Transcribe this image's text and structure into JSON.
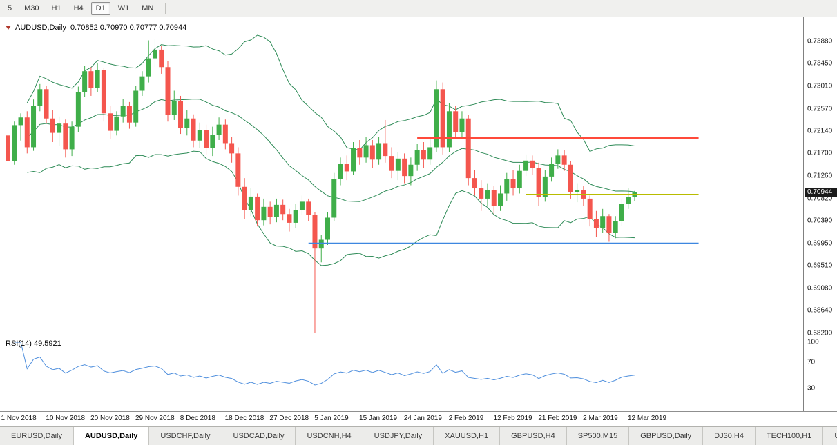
{
  "toolbar": {
    "timeframes": [
      {
        "label": "5",
        "active": false
      },
      {
        "label": "M30",
        "active": false
      },
      {
        "label": "H1",
        "active": false
      },
      {
        "label": "H4",
        "active": false
      },
      {
        "label": "D1",
        "active": true
      },
      {
        "label": "W1",
        "active": false
      },
      {
        "label": "MN",
        "active": false
      }
    ]
  },
  "chart": {
    "symbol_title": "AUDUSD,Daily",
    "ohlc_line": "0.70852 0.70970 0.70777 0.70944"
  },
  "rsi": {
    "label": "RSI(14) 49.5921",
    "axis_labels": [
      "100",
      "70",
      "30"
    ],
    "levels": [
      70,
      30
    ]
  },
  "chart_data": {
    "type": "candlestick",
    "symbol": "AUDUSD",
    "timeframe": "Daily",
    "last_ohlc": {
      "open": "0.70852",
      "high": "0.70970",
      "low": "0.70777",
      "close": "0.70944"
    },
    "current_price": "0.70944",
    "colors": {
      "up": "#3fae49",
      "down": "#f4564e",
      "bollinger": "#2e8b57",
      "rsi": "#4f8fdd",
      "background": "#ffffff",
      "axis_text": "#111111"
    },
    "y_ticks": [
      "0.73880",
      "0.73450",
      "0.73010",
      "0.72570",
      "0.72140",
      "0.71700",
      "0.71260",
      "0.70820",
      "0.70390",
      "0.69950",
      "0.69510",
      "0.69080",
      "0.68640",
      "0.68200"
    ],
    "x_labels": [
      "1 Nov 2018",
      "10 Nov 2018",
      "20 Nov 2018",
      "29 Nov 2018",
      "8 Dec 2018",
      "18 Dec 2018",
      "27 Dec 2018",
      "5 Jan 2019",
      "15 Jan 2019",
      "24 Jan 2019",
      "2 Feb 2019",
      "12 Feb 2019",
      "21 Feb 2019",
      "2 Mar 2019",
      "12 Mar 2019"
    ],
    "x_label_indices": [
      0,
      7,
      14,
      21,
      28,
      35,
      42,
      49,
      56,
      63,
      70,
      77,
      84,
      91,
      98
    ],
    "indicators": {
      "bollinger": {
        "period": 20,
        "deviation": 2
      },
      "rsi": {
        "period": 14,
        "value": "49.5921"
      }
    },
    "hlines": [
      {
        "name": "resistance-hline-red",
        "price": 0.72,
        "color": "#ff4a3a",
        "from_index": 64,
        "to_index": 108
      },
      {
        "name": "pivot-hline-yellow",
        "price": 0.709,
        "color": "#b8bc00",
        "from_index": 81,
        "to_index": 108
      },
      {
        "name": "support-hline-blue",
        "price": 0.6995,
        "color": "#3d87e0",
        "from_index": 47,
        "to_index": 108
      }
    ],
    "ohlc": [
      [
        0.7205,
        0.7218,
        0.7145,
        0.7155
      ],
      [
        0.7155,
        0.7232,
        0.7148,
        0.7225
      ],
      [
        0.7225,
        0.7248,
        0.7195,
        0.724
      ],
      [
        0.724,
        0.7252,
        0.717,
        0.7182
      ],
      [
        0.7182,
        0.7275,
        0.7175,
        0.7262
      ],
      [
        0.7262,
        0.7305,
        0.7252,
        0.7295
      ],
      [
        0.7295,
        0.7302,
        0.7228,
        0.7238
      ],
      [
        0.7238,
        0.7255,
        0.7192,
        0.721
      ],
      [
        0.721,
        0.7242,
        0.7185,
        0.7228
      ],
      [
        0.7228,
        0.7236,
        0.7162,
        0.7178
      ],
      [
        0.7178,
        0.7232,
        0.7165,
        0.7222
      ],
      [
        0.7222,
        0.73,
        0.7212,
        0.729
      ],
      [
        0.729,
        0.734,
        0.728,
        0.733
      ],
      [
        0.733,
        0.7338,
        0.7282,
        0.7298
      ],
      [
        0.7298,
        0.7345,
        0.729,
        0.7332
      ],
      [
        0.7332,
        0.7336,
        0.7232,
        0.7248
      ],
      [
        0.7248,
        0.7262,
        0.7198,
        0.7214
      ],
      [
        0.7214,
        0.7252,
        0.7205,
        0.7242
      ],
      [
        0.7242,
        0.7276,
        0.723,
        0.7262
      ],
      [
        0.7262,
        0.727,
        0.7218,
        0.723
      ],
      [
        0.723,
        0.7302,
        0.7222,
        0.7292
      ],
      [
        0.7292,
        0.733,
        0.7282,
        0.732
      ],
      [
        0.732,
        0.739,
        0.7308,
        0.7355
      ],
      [
        0.7355,
        0.7392,
        0.7338,
        0.7372
      ],
      [
        0.7372,
        0.738,
        0.7325,
        0.7338
      ],
      [
        0.7338,
        0.735,
        0.7232,
        0.7245
      ],
      [
        0.7245,
        0.7292,
        0.7235,
        0.7272
      ],
      [
        0.7272,
        0.7282,
        0.7208,
        0.722
      ],
      [
        0.722,
        0.7255,
        0.7205,
        0.7238
      ],
      [
        0.7238,
        0.7246,
        0.7182,
        0.7195
      ],
      [
        0.7195,
        0.723,
        0.718,
        0.7216
      ],
      [
        0.7216,
        0.7226,
        0.7168,
        0.718
      ],
      [
        0.718,
        0.7222,
        0.7165,
        0.7206
      ],
      [
        0.7206,
        0.724,
        0.7196,
        0.7226
      ],
      [
        0.7226,
        0.7236,
        0.7178,
        0.719
      ],
      [
        0.719,
        0.7202,
        0.7152,
        0.717
      ],
      [
        0.717,
        0.7182,
        0.7088,
        0.7105
      ],
      [
        0.7105,
        0.7122,
        0.7042,
        0.706
      ],
      [
        0.706,
        0.7102,
        0.7048,
        0.7086
      ],
      [
        0.7086,
        0.7092,
        0.7028,
        0.704
      ],
      [
        0.704,
        0.7082,
        0.703,
        0.7066
      ],
      [
        0.7066,
        0.7076,
        0.7032,
        0.7046
      ],
      [
        0.7046,
        0.7082,
        0.7036,
        0.707
      ],
      [
        0.707,
        0.708,
        0.704,
        0.7052
      ],
      [
        0.7052,
        0.7062,
        0.7018,
        0.7035
      ],
      [
        0.7035,
        0.7072,
        0.7025,
        0.706
      ],
      [
        0.706,
        0.7088,
        0.705,
        0.7076
      ],
      [
        0.7076,
        0.7082,
        0.7038,
        0.705
      ],
      [
        0.705,
        0.7056,
        0.682,
        0.6985
      ],
      [
        0.6985,
        0.7012,
        0.6958,
        0.7002
      ],
      [
        0.7002,
        0.7056,
        0.6992,
        0.7045
      ],
      [
        0.7045,
        0.7132,
        0.7038,
        0.712
      ],
      [
        0.712,
        0.7162,
        0.7108,
        0.715
      ],
      [
        0.715,
        0.7166,
        0.7118,
        0.7135
      ],
      [
        0.7135,
        0.7192,
        0.7128,
        0.718
      ],
      [
        0.718,
        0.7196,
        0.7148,
        0.7162
      ],
      [
        0.7162,
        0.7202,
        0.7152,
        0.7186
      ],
      [
        0.7186,
        0.7196,
        0.7142,
        0.7158
      ],
      [
        0.7158,
        0.7202,
        0.7148,
        0.719
      ],
      [
        0.719,
        0.7235,
        0.7152,
        0.7165
      ],
      [
        0.7165,
        0.7182,
        0.7122,
        0.7136
      ],
      [
        0.7136,
        0.7172,
        0.7118,
        0.716
      ],
      [
        0.716,
        0.717,
        0.7112,
        0.7126
      ],
      [
        0.7126,
        0.7162,
        0.7108,
        0.7148
      ],
      [
        0.7148,
        0.7188,
        0.7136,
        0.7176
      ],
      [
        0.7176,
        0.7192,
        0.7142,
        0.7158
      ],
      [
        0.7158,
        0.7198,
        0.7148,
        0.7182
      ],
      [
        0.7182,
        0.7312,
        0.7172,
        0.7295
      ],
      [
        0.7295,
        0.7308,
        0.7168,
        0.7182
      ],
      [
        0.7182,
        0.7268,
        0.7172,
        0.7252
      ],
      [
        0.7252,
        0.7262,
        0.7198,
        0.7212
      ],
      [
        0.7212,
        0.7252,
        0.7202,
        0.7238
      ],
      [
        0.7238,
        0.7245,
        0.7108,
        0.7122
      ],
      [
        0.7122,
        0.7138,
        0.7088,
        0.7102
      ],
      [
        0.7102,
        0.7118,
        0.7058,
        0.7082
      ],
      [
        0.7082,
        0.7112,
        0.7068,
        0.7098
      ],
      [
        0.7098,
        0.7106,
        0.7052,
        0.7068
      ],
      [
        0.7068,
        0.7108,
        0.7058,
        0.7092
      ],
      [
        0.7092,
        0.7132,
        0.7078,
        0.712
      ],
      [
        0.712,
        0.7138,
        0.7088,
        0.7102
      ],
      [
        0.7102,
        0.7148,
        0.7092,
        0.7136
      ],
      [
        0.7136,
        0.7168,
        0.7126,
        0.7156
      ],
      [
        0.7156,
        0.7166,
        0.7128,
        0.7142
      ],
      [
        0.7142,
        0.7152,
        0.7068,
        0.7085
      ],
      [
        0.7085,
        0.7138,
        0.7076,
        0.7125
      ],
      [
        0.7125,
        0.7162,
        0.7115,
        0.715
      ],
      [
        0.715,
        0.7178,
        0.714,
        0.7166
      ],
      [
        0.7166,
        0.7176,
        0.7136,
        0.7148
      ],
      [
        0.7148,
        0.7155,
        0.7082,
        0.7095
      ],
      [
        0.7095,
        0.7112,
        0.7075,
        0.7098
      ],
      [
        0.7098,
        0.7106,
        0.7068,
        0.7082
      ],
      [
        0.7082,
        0.7088,
        0.7028,
        0.7042
      ],
      [
        0.7042,
        0.7058,
        0.7008,
        0.7025
      ],
      [
        0.7025,
        0.7062,
        0.7016,
        0.7048
      ],
      [
        0.7048,
        0.7052,
        0.6998,
        0.7015
      ],
      [
        0.7015,
        0.7048,
        0.7005,
        0.7038
      ],
      [
        0.7038,
        0.7082,
        0.7028,
        0.7072
      ],
      [
        0.7072,
        0.7102,
        0.7062,
        0.7085
      ],
      [
        0.70852,
        0.7097,
        0.70777,
        0.70944
      ]
    ]
  },
  "tabs": [
    {
      "label": "EURUSD,Daily",
      "active": false
    },
    {
      "label": "AUDUSD,Daily",
      "active": true
    },
    {
      "label": "USDCHF,Daily",
      "active": false
    },
    {
      "label": "USDCAD,Daily",
      "active": false
    },
    {
      "label": "USDCNH,H4",
      "active": false
    },
    {
      "label": "USDJPY,Daily",
      "active": false
    },
    {
      "label": "XAUUSD,H1",
      "active": false
    },
    {
      "label": "GBPUSD,H4",
      "active": false
    },
    {
      "label": "SP500,M15",
      "active": false
    },
    {
      "label": "GBPUSD,Daily",
      "active": false
    },
    {
      "label": "DJ30,H4",
      "active": false
    },
    {
      "label": "TECH100,H1",
      "active": false
    },
    {
      "label": "UKC",
      "active": false
    }
  ]
}
